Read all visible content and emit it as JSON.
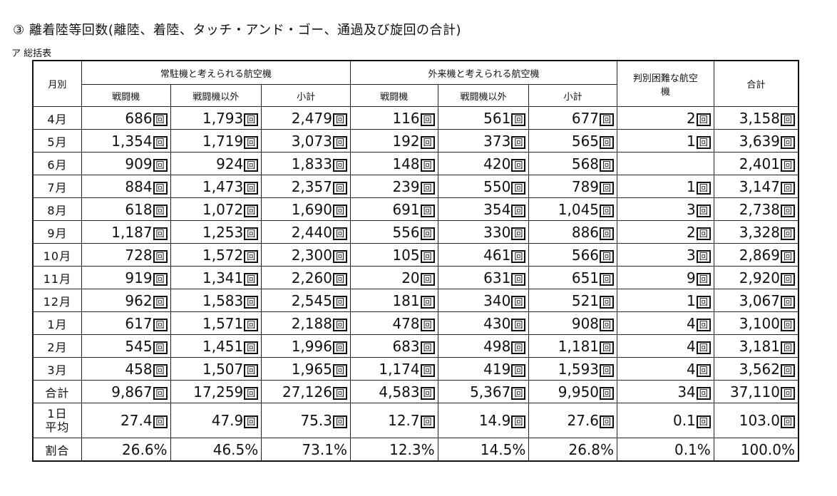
{
  "title": "③ 離着陸等回数(離陸、着陸、タッチ・アンド・ゴー、通過及び旋回の合計)",
  "subtitle": "ア 総括表",
  "unit": "回",
  "headers": {
    "month": "月別",
    "resident_group": "常駐機と考えられる航空機",
    "visiting_group": "外来機と考えられる航空機",
    "unknown": "判別困難な航空機",
    "total": "合計",
    "fighter": "戦闘機",
    "non_fighter": "戦闘機以外",
    "subtotal": "小計"
  },
  "rows": [
    {
      "month": "4月",
      "values": [
        "686",
        "1,793",
        "2,479",
        "116",
        "561",
        "677",
        "2",
        "3,158"
      ]
    },
    {
      "month": "5月",
      "values": [
        "1,354",
        "1,719",
        "3,073",
        "192",
        "373",
        "565",
        "1",
        "3,639"
      ]
    },
    {
      "month": "6月",
      "values": [
        "909",
        "924",
        "1,833",
        "148",
        "420",
        "568",
        "",
        "2,401"
      ]
    },
    {
      "month": "7月",
      "values": [
        "884",
        "1,473",
        "2,357",
        "239",
        "550",
        "789",
        "1",
        "3,147"
      ]
    },
    {
      "month": "8月",
      "values": [
        "618",
        "1,072",
        "1,690",
        "691",
        "354",
        "1,045",
        "3",
        "2,738"
      ]
    },
    {
      "month": "9月",
      "values": [
        "1,187",
        "1,253",
        "2,440",
        "556",
        "330",
        "886",
        "2",
        "3,328"
      ]
    },
    {
      "month": "10月",
      "values": [
        "728",
        "1,572",
        "2,300",
        "105",
        "461",
        "566",
        "3",
        "2,869"
      ]
    },
    {
      "month": "11月",
      "values": [
        "919",
        "1,341",
        "2,260",
        "20",
        "631",
        "651",
        "9",
        "2,920"
      ]
    },
    {
      "month": "12月",
      "values": [
        "962",
        "1,583",
        "2,545",
        "181",
        "340",
        "521",
        "1",
        "3,067"
      ]
    },
    {
      "month": "1月",
      "values": [
        "617",
        "1,571",
        "2,188",
        "478",
        "430",
        "908",
        "4",
        "3,100"
      ]
    },
    {
      "month": "2月",
      "values": [
        "545",
        "1,451",
        "1,996",
        "683",
        "498",
        "1,181",
        "4",
        "3,181"
      ]
    },
    {
      "month": "3月",
      "values": [
        "458",
        "1,507",
        "1,965",
        "1,174",
        "419",
        "1,593",
        "4",
        "3,562"
      ]
    }
  ],
  "summary": {
    "total": {
      "label": "合計",
      "values": [
        "9,867",
        "17,259",
        "27,126",
        "4,583",
        "5,367",
        "9,950",
        "34",
        "37,110"
      ]
    },
    "daily_average": {
      "label_line1": "1日",
      "label_line2": "平均",
      "values": [
        "27.4",
        "47.9",
        "75.3",
        "12.7",
        "14.9",
        "27.6",
        "0.1",
        "103.0"
      ]
    },
    "ratio": {
      "label": "割合",
      "values": [
        "26.6%",
        "46.5%",
        "73.1%",
        "12.3%",
        "14.5%",
        "26.8%",
        "0.1%",
        "100.0%"
      ]
    }
  }
}
